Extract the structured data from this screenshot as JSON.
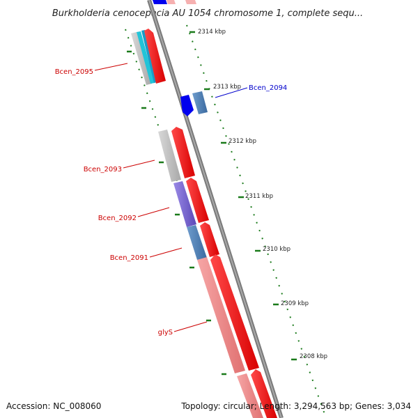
{
  "title": "Burkholderia cenocepacia AU 1054 chromosome 1, complete sequ...",
  "footer": {
    "accession": "Accession: NC_008060",
    "topology": "Topology: circular; Length: 3,294,563 bp; Genes: 3,034"
  },
  "ticks": [
    "2314 kbp",
    "2313 kbp",
    "2312 kbp",
    "2311 kbp",
    "2310 kbp",
    "2309 kbp",
    "2308 kbp"
  ],
  "gene_labels": [
    {
      "text": "Bcen_2095",
      "color": "#cc0000"
    },
    {
      "text": "Bcen_2094",
      "color": "#0000cc"
    },
    {
      "text": "Bcen_2093",
      "color": "#cc0000"
    },
    {
      "text": "Bcen_2092",
      "color": "#cc0000"
    },
    {
      "text": "Bcen_2091",
      "color": "#cc0000"
    },
    {
      "text": "glyS",
      "color": "#cc0000"
    }
  ],
  "colors": {
    "backbone": "#8a8a8a",
    "forward_cds": "#ee0000",
    "reverse_cds": "#0000ee",
    "gene_blue": "#4d7fb5",
    "gene_grey": "#b8b8b8",
    "gene_purple": "#7b68d0",
    "gene_cyan": "#22c4d8",
    "gene_pink": "#f08a8a",
    "ruler": "#1a7a1a"
  }
}
